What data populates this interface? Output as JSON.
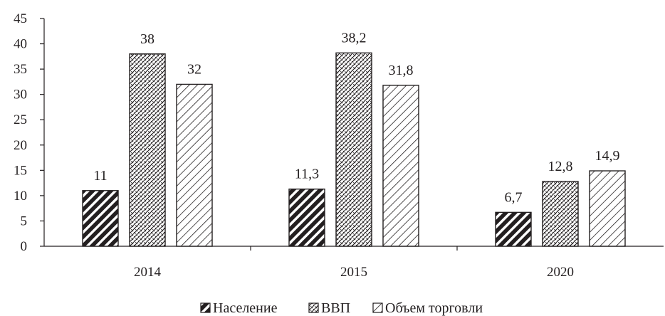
{
  "chart_data": {
    "type": "bar",
    "title": "",
    "xlabel": "",
    "ylabel": "",
    "categories": [
      "2014",
      "2015",
      "2020"
    ],
    "ylim": [
      0,
      45
    ],
    "yticks": [
      0,
      5,
      10,
      15,
      20,
      25,
      30,
      35,
      40,
      45
    ],
    "grid": false,
    "legend_position": "bottom",
    "series": [
      {
        "name": "Население",
        "values": [
          11,
          11.3,
          6.7
        ],
        "labels": [
          "11",
          "11,3",
          "6,7"
        ],
        "pattern": "thick-diagonal"
      },
      {
        "name": "ВВП",
        "values": [
          38,
          38.2,
          12.8
        ],
        "labels": [
          "38",
          "38,2",
          "12,8"
        ],
        "pattern": "crosshatch"
      },
      {
        "name": "Объем торговли",
        "values": [
          32,
          31.8,
          14.9
        ],
        "labels": [
          "32",
          "31,8",
          "14,9"
        ],
        "pattern": "thin-diagonal"
      }
    ],
    "colors": {
      "ink": "#231f20",
      "background": "#ffffff"
    }
  }
}
